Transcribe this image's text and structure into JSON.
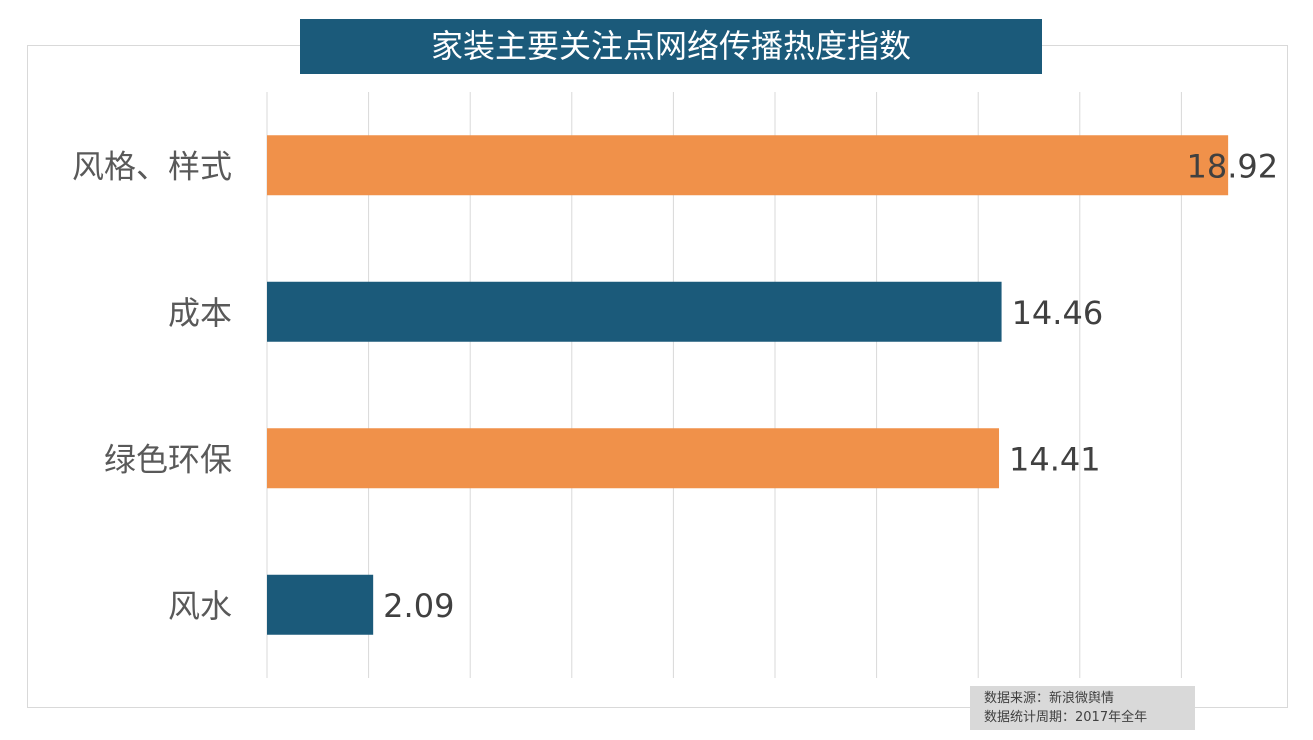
{
  "chart_data": {
    "type": "bar",
    "orientation": "horizontal",
    "title": "家装主要关注点网络传播热度指数",
    "categories": [
      "风格、样式",
      "成本",
      "绿色环保",
      "风水"
    ],
    "values": [
      18.92,
      14.46,
      14.41,
      2.09
    ],
    "data_labels": [
      "18.92",
      "14.46",
      "14.41",
      "2.09"
    ],
    "bar_colors": [
      "#f0914a",
      "#1b5a7a",
      "#f0914a",
      "#1b5a7a"
    ],
    "xlim": [
      0,
      20
    ],
    "grid_step": 2,
    "grid": true,
    "xlabel": "",
    "ylabel": ""
  },
  "source": {
    "line1": "数据来源：新浪微舆情",
    "line2": "数据统计周期：2017年全年"
  }
}
